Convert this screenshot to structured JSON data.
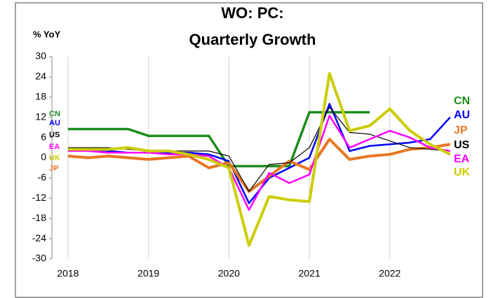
{
  "chart_data": {
    "type": "line",
    "title": [
      "WO: PC:",
      "Quarterly Growth"
    ],
    "y_label": "% YoY",
    "x": [
      2018,
      2018.25,
      2018.5,
      2018.75,
      2019,
      2019.25,
      2019.5,
      2019.75,
      2020,
      2020.25,
      2020.5,
      2020.75,
      2021,
      2021.25,
      2021.5,
      2021.75,
      2022,
      2022.25,
      2022.5,
      2022.75
    ],
    "xlim": [
      2017.8,
      2022.9
    ],
    "xticks": [
      2018,
      2019,
      2020,
      2021,
      2022
    ],
    "ylim": [
      -30,
      30
    ],
    "yticks": [
      -30,
      -24,
      -18,
      -12,
      -6,
      0,
      6,
      12,
      18,
      24,
      30
    ],
    "grid": "x",
    "series": [
      {
        "name": "CN",
        "color": "#1e8c1e",
        "values": [
          8.5,
          8.5,
          8.5,
          8.5,
          6.5,
          6.5,
          6.5,
          6.5,
          -2.5,
          -2.5,
          -2.5,
          -2.5,
          13.5,
          13.5,
          13.5,
          13.5,
          null,
          null,
          null,
          null
        ]
      },
      {
        "name": "AU",
        "color": "#0000ff",
        "values": [
          2.5,
          2.5,
          2,
          1.5,
          1.5,
          1.5,
          1.5,
          1,
          -1,
          -13.5,
          -6,
          -3,
          0,
          16,
          2,
          3.5,
          4,
          4.5,
          5.5,
          12
        ]
      },
      {
        "name": "JP",
        "color": "#e87722",
        "values": [
          0.5,
          0,
          0.5,
          0,
          -0.5,
          0,
          0.5,
          -3,
          -1.5,
          -10,
          -5.5,
          -1,
          -3.5,
          5.5,
          -0.5,
          0.5,
          1,
          2.5,
          3,
          4
        ]
      },
      {
        "name": "US",
        "color": "#000000",
        "values": [
          3,
          3,
          3,
          2.5,
          2,
          2,
          2,
          2,
          0.5,
          -10,
          -2,
          -1.5,
          3,
          15,
          7.5,
          7,
          5,
          3,
          2.5,
          2
        ]
      },
      {
        "name": "EA",
        "color": "#ff00ff",
        "values": [
          2,
          2,
          1.5,
          1.5,
          1.5,
          1,
          1,
          0.5,
          -3,
          -15.5,
          -4.5,
          -7.5,
          -5,
          12.5,
          3,
          5.5,
          8,
          6,
          3,
          2
        ]
      },
      {
        "name": "UK",
        "color": "#cccc00",
        "values": [
          2.5,
          2.5,
          2.5,
          3,
          2,
          2,
          1,
          -0.5,
          -3,
          -26,
          -11.5,
          -12.5,
          -13,
          25,
          8,
          9.5,
          14.5,
          8,
          4,
          1
        ]
      }
    ]
  }
}
